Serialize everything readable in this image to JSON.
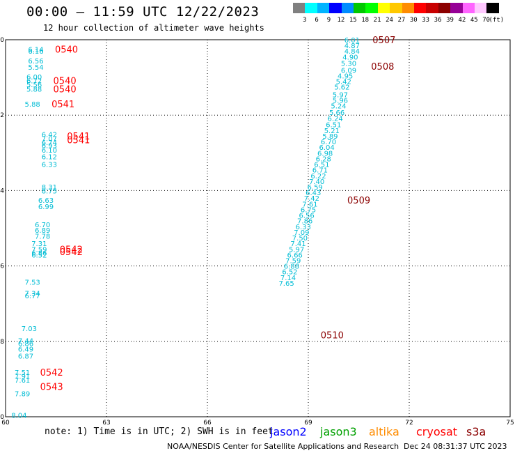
{
  "header": {
    "title": "00:00 – 11:59 UTC 12/22/2023",
    "subtitle": "12 hour collection of altimeter wave heights"
  },
  "scale": {
    "unit": "(ft)",
    "labels": [
      "3",
      "6",
      "9",
      "12",
      "15",
      "18",
      "21",
      "24",
      "27",
      "30",
      "33",
      "36",
      "39",
      "42",
      "45",
      "70"
    ],
    "colors": [
      "#808080",
      "#00ffff",
      "#00b4ff",
      "#0000ff",
      "#008cff",
      "#00c800",
      "#00ff00",
      "#ffff00",
      "#ffc800",
      "#ff8c00",
      "#ff0000",
      "#c80000",
      "#8c0000",
      "#960096",
      "#ff64ff",
      "#ffc8ff",
      "#000000"
    ]
  },
  "axes": {
    "y_ticks": [
      "-20",
      "-22",
      "-24",
      "-26",
      "-28",
      "-30"
    ],
    "x_ticks": [
      "60",
      "63",
      "66",
      "69",
      "72",
      "75"
    ]
  },
  "chart_data": {
    "type": "scatter",
    "xlim": [
      60,
      75
    ],
    "ylim": [
      -30,
      -20
    ],
    "grid": true,
    "tracks": [
      {
        "pass": "0540",
        "color": "#ff0000",
        "labels": [
          {
            "x": 60.9,
            "y": -20.25,
            "v": "6.14"
          },
          {
            "x": 60.9,
            "y": -20.3,
            "v": "6.16"
          },
          {
            "x": 60.9,
            "y": -20.55,
            "v": "6.56"
          },
          {
            "x": 60.9,
            "y": -20.72,
            "v": "5.54"
          },
          {
            "x": 60.85,
            "y": -20.98,
            "v": "6.00"
          },
          {
            "x": 60.85,
            "y": -21.08,
            "v": "6.72"
          },
          {
            "x": 60.85,
            "y": -21.18,
            "v": "5.56"
          },
          {
            "x": 60.85,
            "y": -21.3,
            "v": "5.88"
          },
          {
            "x": 60.8,
            "y": -21.7,
            "v": "5.88"
          }
        ]
      },
      {
        "pass": "0541",
        "color": "#ff0000",
        "labels": [
          {
            "x": 61.3,
            "y": -22.5,
            "v": "6.42"
          },
          {
            "x": 61.3,
            "y": -22.62,
            "v": "7.07"
          },
          {
            "x": 61.3,
            "y": -22.72,
            "v": "6.74"
          },
          {
            "x": 61.3,
            "y": -22.8,
            "v": "6.93"
          },
          {
            "x": 61.3,
            "y": -22.92,
            "v": "6.10"
          },
          {
            "x": 61.3,
            "y": -23.1,
            "v": "6.12"
          },
          {
            "x": 61.3,
            "y": -23.3,
            "v": "6.33"
          },
          {
            "x": 61.3,
            "y": -23.9,
            "v": "8.31"
          },
          {
            "x": 61.3,
            "y": -24.0,
            "v": "8.75"
          },
          {
            "x": 61.2,
            "y": -24.25,
            "v": "6.63"
          },
          {
            "x": 61.2,
            "y": -24.42,
            "v": "6.99"
          },
          {
            "x": 61.1,
            "y": -24.9,
            "v": "6.70"
          },
          {
            "x": 61.1,
            "y": -25.05,
            "v": "6.89"
          },
          {
            "x": 61.1,
            "y": -25.2,
            "v": "7.78"
          },
          {
            "x": 61.0,
            "y": -25.4,
            "v": "7.31"
          },
          {
            "x": 61.0,
            "y": -25.55,
            "v": "7.59"
          },
          {
            "x": 61.0,
            "y": -25.65,
            "v": "6.86"
          },
          {
            "x": 61.0,
            "y": -25.7,
            "v": "6.52"
          }
        ]
      },
      {
        "pass": "0542",
        "color": "#ff0000",
        "labels": [
          {
            "x": 60.8,
            "y": -26.42,
            "v": "7.53"
          },
          {
            "x": 60.8,
            "y": -26.72,
            "v": "7.34"
          },
          {
            "x": 60.8,
            "y": -26.78,
            "v": "6.77"
          },
          {
            "x": 60.7,
            "y": -27.65,
            "v": "7.03"
          },
          {
            "x": 60.6,
            "y": -27.98,
            "v": "7.44"
          },
          {
            "x": 60.6,
            "y": -28.05,
            "v": "6.86"
          },
          {
            "x": 60.6,
            "y": -28.2,
            "v": "6.49"
          },
          {
            "x": 60.6,
            "y": -28.38,
            "v": "6.87"
          },
          {
            "x": 60.5,
            "y": -28.82,
            "v": "7.51"
          },
          {
            "x": 60.5,
            "y": -28.92,
            "v": "7.91"
          },
          {
            "x": 60.5,
            "y": -29.02,
            "v": "7.61"
          },
          {
            "x": 60.5,
            "y": -29.38,
            "v": "7.89"
          },
          {
            "x": 60.4,
            "y": -29.95,
            "v": "8.04"
          }
        ]
      },
      {
        "pass": "0507",
        "color": "#8b0000",
        "labels": [
          {
            "x": 70.3,
            "y": -20.0,
            "v": "6.01"
          },
          {
            "x": 70.3,
            "y": -20.15,
            "v": "4.87"
          },
          {
            "x": 70.3,
            "y": -20.3,
            "v": "4.84"
          },
          {
            "x": 70.25,
            "y": -20.45,
            "v": "4.90"
          },
          {
            "x": 70.2,
            "y": -20.62,
            "v": "5.30"
          },
          {
            "x": 70.2,
            "y": -20.8,
            "v": "6.09"
          },
          {
            "x": 70.1,
            "y": -20.95,
            "v": "4.95"
          },
          {
            "x": 70.05,
            "y": -21.1,
            "v": "5.42"
          },
          {
            "x": 70.0,
            "y": -21.25,
            "v": "5.62"
          },
          {
            "x": 69.95,
            "y": -21.45,
            "v": "5.97"
          },
          {
            "x": 69.95,
            "y": -21.6,
            "v": "5.96"
          },
          {
            "x": 69.9,
            "y": -21.75,
            "v": "5.24"
          },
          {
            "x": 69.85,
            "y": -21.92,
            "v": "5.66"
          },
          {
            "x": 69.8,
            "y": -22.08,
            "v": "6.24"
          },
          {
            "x": 69.75,
            "y": -22.25,
            "v": "6.51"
          },
          {
            "x": 69.7,
            "y": -22.4,
            "v": "5.21"
          },
          {
            "x": 69.65,
            "y": -22.55,
            "v": "5.89"
          },
          {
            "x": 69.6,
            "y": -22.7,
            "v": "6.70"
          }
        ]
      },
      {
        "pass": "0509",
        "color": "#8b0000",
        "labels": [
          {
            "x": 69.55,
            "y": -22.85,
            "v": "6.04"
          },
          {
            "x": 69.5,
            "y": -23.0,
            "v": "6.98"
          },
          {
            "x": 69.45,
            "y": -23.15,
            "v": "6.28"
          },
          {
            "x": 69.4,
            "y": -23.3,
            "v": "6.51"
          },
          {
            "x": 69.35,
            "y": -23.45,
            "v": "6.71"
          },
          {
            "x": 69.3,
            "y": -23.6,
            "v": "6.22"
          },
          {
            "x": 69.25,
            "y": -23.75,
            "v": "7.40"
          },
          {
            "x": 69.2,
            "y": -23.9,
            "v": "6.59"
          },
          {
            "x": 69.15,
            "y": -24.05,
            "v": "6.43"
          },
          {
            "x": 69.1,
            "y": -24.2,
            "v": "7.42"
          },
          {
            "x": 69.05,
            "y": -24.35,
            "v": "7.61"
          },
          {
            "x": 69.0,
            "y": -24.5,
            "v": "6.75"
          },
          {
            "x": 68.95,
            "y": -24.65,
            "v": "6.56"
          },
          {
            "x": 68.9,
            "y": -24.8,
            "v": "7.86"
          },
          {
            "x": 68.85,
            "y": -24.95,
            "v": "6.33"
          },
          {
            "x": 68.8,
            "y": -25.1,
            "v": "7.09"
          }
        ]
      },
      {
        "pass": "0510",
        "color": "#8b0000",
        "labels": [
          {
            "x": 68.75,
            "y": -25.25,
            "v": "7.50"
          },
          {
            "x": 68.7,
            "y": -25.4,
            "v": "7.41"
          },
          {
            "x": 68.65,
            "y": -25.55,
            "v": "5.97"
          },
          {
            "x": 68.6,
            "y": -25.7,
            "v": "6.66"
          },
          {
            "x": 68.55,
            "y": -25.85,
            "v": "7.59"
          },
          {
            "x": 68.5,
            "y": -26.0,
            "v": "6.88"
          },
          {
            "x": 68.45,
            "y": -26.15,
            "v": "6.52"
          },
          {
            "x": 68.4,
            "y": -26.3,
            "v": "7.14"
          },
          {
            "x": 68.35,
            "y": -26.45,
            "v": "7.65"
          }
        ]
      }
    ]
  },
  "pass_labels": [
    {
      "text": "0540",
      "color": "#ff0000"
    },
    {
      "text": "0540",
      "color": "#ff0000"
    },
    {
      "text": "0540",
      "color": "#ff0000"
    },
    {
      "text": "0541",
      "color": "#ff0000"
    },
    {
      "text": "0541",
      "color": "#ff0000"
    },
    {
      "text": "0541",
      "color": "#ff0000"
    },
    {
      "text": "0542",
      "color": "#ff0000"
    },
    {
      "text": "0542",
      "color": "#ff0000"
    },
    {
      "text": "0542",
      "color": "#ff0000"
    },
    {
      "text": "0543",
      "color": "#ff0000"
    },
    {
      "text": "0507",
      "color": "#8b0000"
    },
    {
      "text": "0508",
      "color": "#8b0000"
    },
    {
      "text": "0509",
      "color": "#8b0000"
    },
    {
      "text": "0510",
      "color": "#8b0000"
    }
  ],
  "notes": {
    "note": "note: 1) Time is in UTC; 2) SWH is in feet",
    "satellites": [
      {
        "name": "jason2",
        "color": "#0000ff"
      },
      {
        "name": "jason3",
        "color": "#00a000"
      },
      {
        "name": "altika",
        "color": "#ff8c00"
      },
      {
        "name": "cryosat",
        "color": "#ff0000"
      },
      {
        "name": "s3a",
        "color": "#8b0000"
      }
    ],
    "footer": "NOAA/NESDIS Center for Satellite Applications and Research",
    "timestamp": "Dec 24 08:31:37 UTC 2023"
  }
}
